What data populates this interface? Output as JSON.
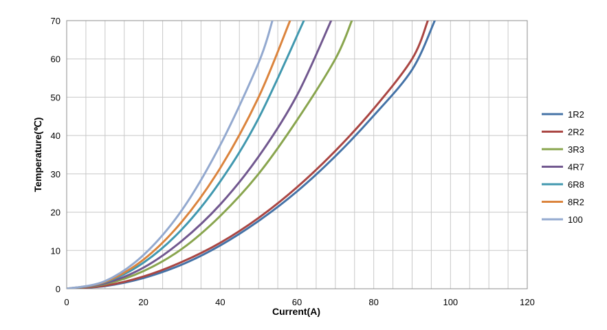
{
  "chart_data": {
    "type": "line",
    "xlabel": "Current(A)",
    "ylabel": "Temperature(℃)",
    "xlim": [
      0,
      120
    ],
    "ylim": [
      0,
      70
    ],
    "xticks": [
      "0",
      "20",
      "40",
      "60",
      "80",
      "100",
      "120"
    ],
    "yticks": [
      "0",
      "10",
      "20",
      "30",
      "40",
      "50",
      "60",
      "70"
    ],
    "grid": true,
    "legend_position": "right",
    "series": [
      {
        "name": "1R2",
        "color": "#4573a7",
        "x": [
          0,
          10,
          20,
          30,
          40,
          50,
          60,
          70,
          80,
          90,
          95.9
        ],
        "y": [
          0,
          0.7,
          2.8,
          6.3,
          11.3,
          17.7,
          25.4,
          34.6,
          45.2,
          57.2,
          70
        ]
      },
      {
        "name": "2R2",
        "color": "#aa4643",
        "x": [
          0,
          10,
          20,
          30,
          40,
          50,
          60,
          70,
          80,
          90,
          94.1
        ],
        "y": [
          0,
          0.8,
          3.2,
          7.0,
          12.0,
          18.5,
          26.5,
          36.0,
          47.0,
          60.0,
          70
        ]
      },
      {
        "name": "3R3",
        "color": "#89a54e",
        "x": [
          0,
          10,
          20,
          30,
          40,
          50,
          60,
          70,
          74.3
        ],
        "y": [
          0,
          1.2,
          4.6,
          10.4,
          19.0,
          30.0,
          44.0,
          60.0,
          70
        ]
      },
      {
        "name": "4R7",
        "color": "#71588f",
        "x": [
          0,
          10,
          20,
          30,
          40,
          50,
          60,
          68.9
        ],
        "y": [
          0,
          1.4,
          5.5,
          12.5,
          22.0,
          34.5,
          50.5,
          70
        ]
      },
      {
        "name": "6R8",
        "color": "#4198af",
        "x": [
          0,
          10,
          20,
          30,
          40,
          50,
          61.8
        ],
        "y": [
          0,
          1.7,
          6.8,
          15.5,
          28.0,
          44.5,
          70
        ]
      },
      {
        "name": "8R2",
        "color": "#db843d",
        "x": [
          0,
          10,
          20,
          30,
          40,
          50,
          58.2
        ],
        "y": [
          0,
          1.8,
          7.6,
          17.5,
          31.5,
          50.0,
          70
        ]
      },
      {
        "name": "100",
        "color": "#93a9cf",
        "x": [
          0,
          10,
          20,
          30,
          40,
          50,
          53.6
        ],
        "y": [
          0,
          2.0,
          8.8,
          20.5,
          37.5,
          59.0,
          70
        ]
      }
    ]
  }
}
